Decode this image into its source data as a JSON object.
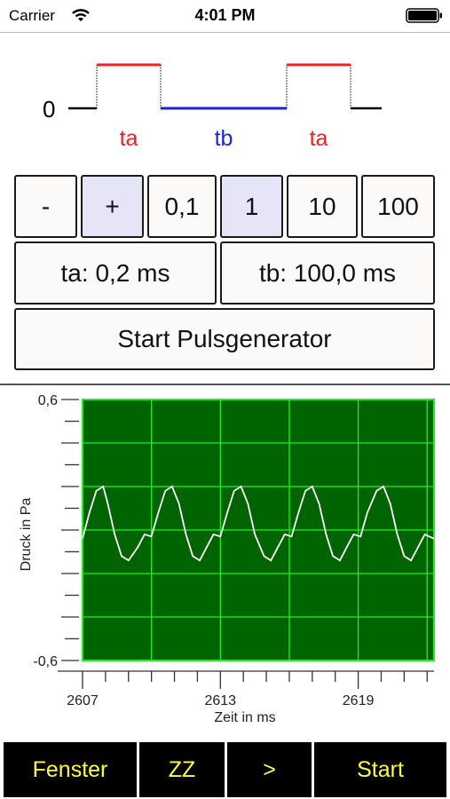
{
  "status_bar": {
    "carrier": "Carrier",
    "time": "4:01 PM"
  },
  "pulse_diagram": {
    "zero_label": "0",
    "labels": [
      "ta",
      "tb",
      "ta"
    ],
    "colors": {
      "ta": "#ee2222",
      "tb": "#2222dd"
    }
  },
  "controls": {
    "step_buttons": [
      "-",
      "+",
      "0,1",
      "1",
      "10",
      "100"
    ],
    "ta_label": "ta: 0,2 ms",
    "tb_label": "tb: 100,0 ms",
    "start_pulse_label": "Start Pulsgenerator"
  },
  "chart_data": {
    "type": "line",
    "xlabel": "Zeit in ms",
    "ylabel": "Druck in Pa",
    "xlim": [
      2607,
      2622.3
    ],
    "ylim": [
      -0.6,
      0.6
    ],
    "x_tick_labels": [
      "2607",
      "2613",
      "2619"
    ],
    "y_tick_labels": [
      "0,6",
      "-0,6"
    ],
    "grid": true,
    "background_color": "#006400",
    "grid_color": "#22ee22",
    "line_color": "#ffffff",
    "series": [
      {
        "x": [
          2607.0,
          2607.3,
          2607.6,
          2607.9,
          2608.1,
          2608.4,
          2608.7,
          2609.0,
          2609.4,
          2609.7,
          2610.0,
          2610.3,
          2610.6,
          2610.9,
          2611.2,
          2611.5,
          2611.8,
          2612.1,
          2612.4,
          2612.7,
          2613.0,
          2613.3,
          2613.6,
          2613.9,
          2614.2,
          2614.5,
          2614.9,
          2615.2,
          2615.5,
          2615.8,
          2616.1,
          2616.4,
          2616.7,
          2617.0,
          2617.3,
          2617.6,
          2617.9,
          2618.2,
          2618.5,
          2618.8,
          2619.1,
          2619.4,
          2619.8,
          2620.1,
          2620.4,
          2620.7,
          2621.0,
          2621.3,
          2621.6,
          2621.9,
          2622.3
        ],
        "y": [
          -0.04,
          0.08,
          0.18,
          0.2,
          0.12,
          -0.02,
          -0.12,
          -0.14,
          -0.08,
          -0.02,
          -0.03,
          0.08,
          0.18,
          0.2,
          0.12,
          -0.02,
          -0.12,
          -0.14,
          -0.08,
          -0.02,
          -0.03,
          0.08,
          0.18,
          0.2,
          0.12,
          -0.02,
          -0.12,
          -0.14,
          -0.08,
          -0.02,
          -0.03,
          0.08,
          0.18,
          0.2,
          0.12,
          -0.02,
          -0.12,
          -0.14,
          -0.08,
          -0.02,
          -0.03,
          0.08,
          0.18,
          0.2,
          0.12,
          -0.02,
          -0.12,
          -0.14,
          -0.08,
          -0.02,
          -0.04
        ]
      }
    ]
  },
  "toolbar": {
    "buttons": [
      "Fenster",
      "ZZ",
      ">",
      "Start"
    ],
    "text_color": "#ffff33"
  }
}
